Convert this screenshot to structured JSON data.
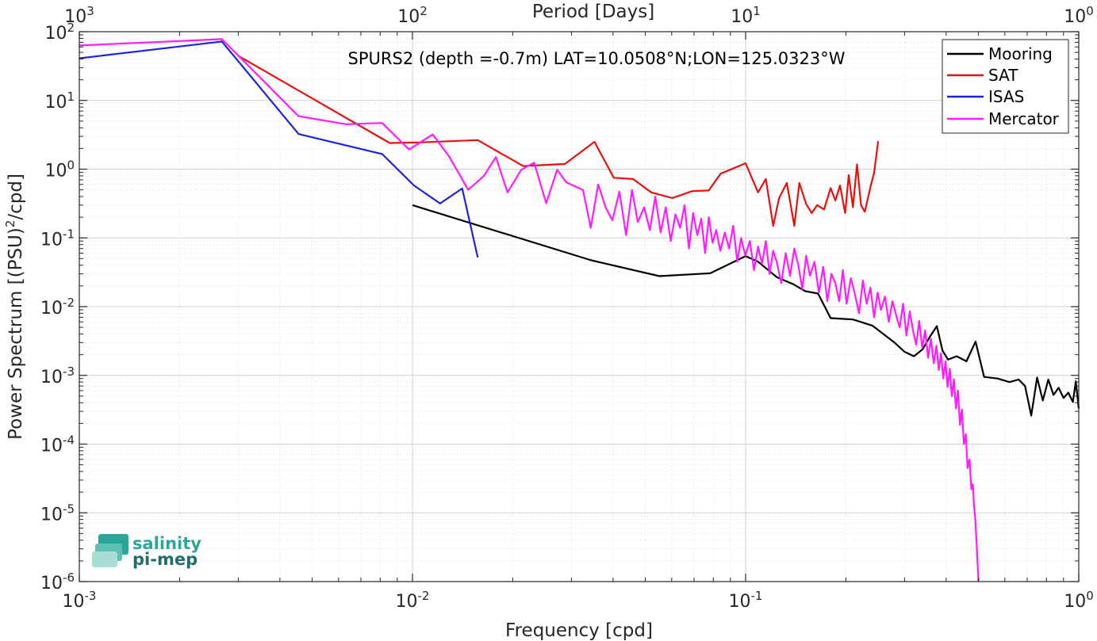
{
  "chart_data": {
    "type": "line",
    "title": "SPURS2 (depth =-0.7m) LAT=10.0508°N;LON=125.0323°W",
    "xlabel": "Frequency [cpd]",
    "ylabel_main": "Power Spectrum [(PSU)",
    "ylabel_sup": "2",
    "ylabel_tail": "/cpd]",
    "top_xlabel": "Period [Days]",
    "xscale": "log",
    "yscale": "log",
    "xlim": [
      0.001,
      1
    ],
    "ylim": [
      1e-06,
      100
    ],
    "grid": true,
    "legend_position": "top-right",
    "x_ticks": [
      {
        "base": "10",
        "exp": "-3",
        "value": 0.001
      },
      {
        "base": "10",
        "exp": "-2",
        "value": 0.01
      },
      {
        "base": "10",
        "exp": "-1",
        "value": 0.1
      },
      {
        "base": "10",
        "exp": "0",
        "value": 1
      }
    ],
    "y_ticks": [
      {
        "base": "10",
        "exp": "2",
        "value": 100
      },
      {
        "base": "10",
        "exp": "1",
        "value": 10
      },
      {
        "base": "10",
        "exp": "0",
        "value": 1
      },
      {
        "base": "10",
        "exp": "-1",
        "value": 0.1
      },
      {
        "base": "10",
        "exp": "-2",
        "value": 0.01
      },
      {
        "base": "10",
        "exp": "-3",
        "value": 0.001
      },
      {
        "base": "10",
        "exp": "-4",
        "value": 0.0001
      },
      {
        "base": "10",
        "exp": "-5",
        "value": 1e-05
      },
      {
        "base": "10",
        "exp": "-6",
        "value": 1e-06
      }
    ],
    "top_ticks": [
      {
        "base": "10",
        "exp": "3",
        "freq": 0.001
      },
      {
        "base": "10",
        "exp": "2",
        "freq": 0.01
      },
      {
        "base": "10",
        "exp": "1",
        "freq": 0.1
      },
      {
        "base": "10",
        "exp": "0",
        "freq": 1
      }
    ],
    "series": [
      {
        "name": "Mooring",
        "color": "#000000",
        "x": [
          0.01,
          0.0344,
          0.0551,
          0.0783,
          0.1,
          0.109,
          0.124,
          0.139,
          0.151,
          0.165,
          0.18,
          0.21,
          0.24,
          0.28,
          0.3,
          0.32,
          0.34,
          0.358,
          0.375,
          0.39,
          0.405,
          0.43,
          0.46,
          0.49,
          0.52,
          0.57,
          0.62,
          0.66,
          0.69,
          0.72,
          0.75,
          0.78,
          0.81,
          0.84,
          0.87,
          0.9,
          0.93,
          0.96,
          0.98,
          1.0
        ],
        "y": [
          0.3,
          0.0473,
          0.0278,
          0.0306,
          0.0543,
          0.045,
          0.0269,
          0.0212,
          0.0168,
          0.0155,
          0.0068,
          0.0065,
          0.0053,
          0.003,
          0.0022,
          0.0019,
          0.0024,
          0.0037,
          0.0052,
          0.0023,
          0.0017,
          0.0019,
          0.0016,
          0.0031,
          0.00095,
          0.0009,
          0.0008,
          0.00087,
          0.0007,
          0.00026,
          0.00093,
          0.00043,
          0.00087,
          0.00052,
          0.00066,
          0.00047,
          0.00056,
          0.00041,
          0.00082,
          0.00033
        ]
      },
      {
        "name": "SAT",
        "color": "#e8100c",
        "x": [
          0.00299,
          0.00855,
          0.0106,
          0.0157,
          0.0215,
          0.0287,
          0.0352,
          0.0402,
          0.0459,
          0.0521,
          0.0603,
          0.0692,
          0.0775,
          0.0842,
          0.1,
          0.109,
          0.115,
          0.121,
          0.126,
          0.133,
          0.14,
          0.145,
          0.152,
          0.158,
          0.164,
          0.172,
          0.18,
          0.186,
          0.192,
          0.199,
          0.204,
          0.21,
          0.216,
          0.222,
          0.228,
          0.237,
          0.243,
          0.25
        ],
        "y": [
          45,
          2.4,
          2.45,
          2.65,
          1.11,
          1.19,
          2.5,
          0.75,
          0.72,
          0.46,
          0.38,
          0.48,
          0.49,
          0.86,
          1.22,
          0.46,
          0.72,
          0.15,
          0.38,
          0.63,
          0.15,
          0.63,
          0.31,
          0.23,
          0.3,
          0.26,
          0.53,
          0.35,
          0.58,
          0.23,
          0.82,
          0.28,
          1.18,
          0.3,
          0.24,
          0.55,
          0.88,
          2.55
        ]
      },
      {
        "name": "ISAS",
        "color": "#1a24e0",
        "x": [
          0.001,
          0.00268,
          0.00455,
          0.00811,
          0.0101,
          0.0121,
          0.0141,
          0.0157
        ],
        "y": [
          41,
          72,
          3.25,
          1.66,
          0.58,
          0.317,
          0.523,
          0.052
        ]
      },
      {
        "name": "Mercator",
        "color": "#ff1aff",
        "x": [
          0.001,
          0.00268,
          0.00455,
          0.00632,
          0.00811,
          0.00977,
          0.0115,
          0.0129,
          0.0147,
          0.0164,
          0.0178,
          0.0193,
          0.0212,
          0.0232,
          0.0252,
          0.0272,
          0.029,
          0.0308,
          0.0325,
          0.0343,
          0.0361,
          0.038,
          0.0398,
          0.0418,
          0.0438,
          0.0456,
          0.0475,
          0.0496,
          0.0516,
          0.0536,
          0.0556,
          0.0576,
          0.0596,
          0.0616,
          0.0636,
          0.0656,
          0.0676,
          0.0696,
          0.0716,
          0.0736,
          0.0756,
          0.0776,
          0.0796,
          0.0816,
          0.084,
          0.0866,
          0.0892,
          0.0918,
          0.0944,
          0.097,
          0.0998,
          0.103,
          0.106,
          0.109,
          0.112,
          0.115,
          0.118,
          0.121,
          0.124,
          0.128,
          0.132,
          0.136,
          0.14,
          0.144,
          0.148,
          0.152,
          0.156,
          0.161,
          0.166,
          0.171,
          0.176,
          0.181,
          0.186,
          0.191,
          0.196,
          0.201,
          0.207,
          0.213,
          0.219,
          0.225,
          0.231,
          0.237,
          0.243,
          0.249,
          0.255,
          0.262,
          0.269,
          0.276,
          0.283,
          0.29,
          0.297,
          0.304,
          0.311,
          0.318,
          0.325,
          0.332,
          0.339,
          0.346,
          0.353,
          0.36,
          0.367,
          0.374,
          0.38,
          0.386,
          0.392,
          0.398,
          0.404,
          0.41,
          0.416,
          0.422,
          0.428,
          0.434,
          0.44,
          0.446,
          0.452,
          0.458,
          0.464,
          0.47,
          0.476,
          0.481,
          0.485,
          0.489,
          0.493,
          0.497,
          0.5
        ],
        "y": [
          63,
          78,
          5.9,
          4.5,
          4.7,
          1.93,
          3.2,
          1.52,
          0.5,
          0.8,
          1.5,
          0.46,
          0.98,
          1.24,
          0.32,
          0.98,
          0.64,
          0.56,
          0.5,
          0.14,
          0.6,
          0.28,
          0.18,
          0.47,
          0.11,
          0.5,
          0.17,
          0.28,
          0.13,
          0.4,
          0.12,
          0.28,
          0.09,
          0.22,
          0.14,
          0.3,
          0.07,
          0.23,
          0.11,
          0.19,
          0.06,
          0.2,
          0.085,
          0.13,
          0.065,
          0.12,
          0.07,
          0.15,
          0.045,
          0.1,
          0.055,
          0.09,
          0.034,
          0.075,
          0.042,
          0.09,
          0.03,
          0.065,
          0.045,
          0.022,
          0.06,
          0.028,
          0.07,
          0.04,
          0.018,
          0.055,
          0.028,
          0.045,
          0.016,
          0.038,
          0.012,
          0.03,
          0.022,
          0.012,
          0.034,
          0.011,
          0.026,
          0.015,
          0.008,
          0.024,
          0.011,
          0.019,
          0.007,
          0.016,
          0.009,
          0.014,
          0.006,
          0.012,
          0.0075,
          0.005,
          0.011,
          0.0038,
          0.0085,
          0.0045,
          0.0028,
          0.0062,
          0.0025,
          0.0045,
          0.0018,
          0.0034,
          0.0015,
          0.0027,
          0.0012,
          0.0021,
          0.0009,
          0.0016,
          0.00068,
          0.00125,
          0.0005,
          0.00088,
          0.00033,
          0.0006,
          0.00019,
          0.00032,
          0.0001,
          0.00014,
          4.5e-05,
          6e-05,
          2.2e-05,
          2.6e-05,
          1.25e-05,
          8.5e-06,
          4e-06,
          1.8e-06,
          1e-06
        ]
      }
    ]
  },
  "logo": {
    "line1": "salinity",
    "line2": "pi-mep"
  }
}
